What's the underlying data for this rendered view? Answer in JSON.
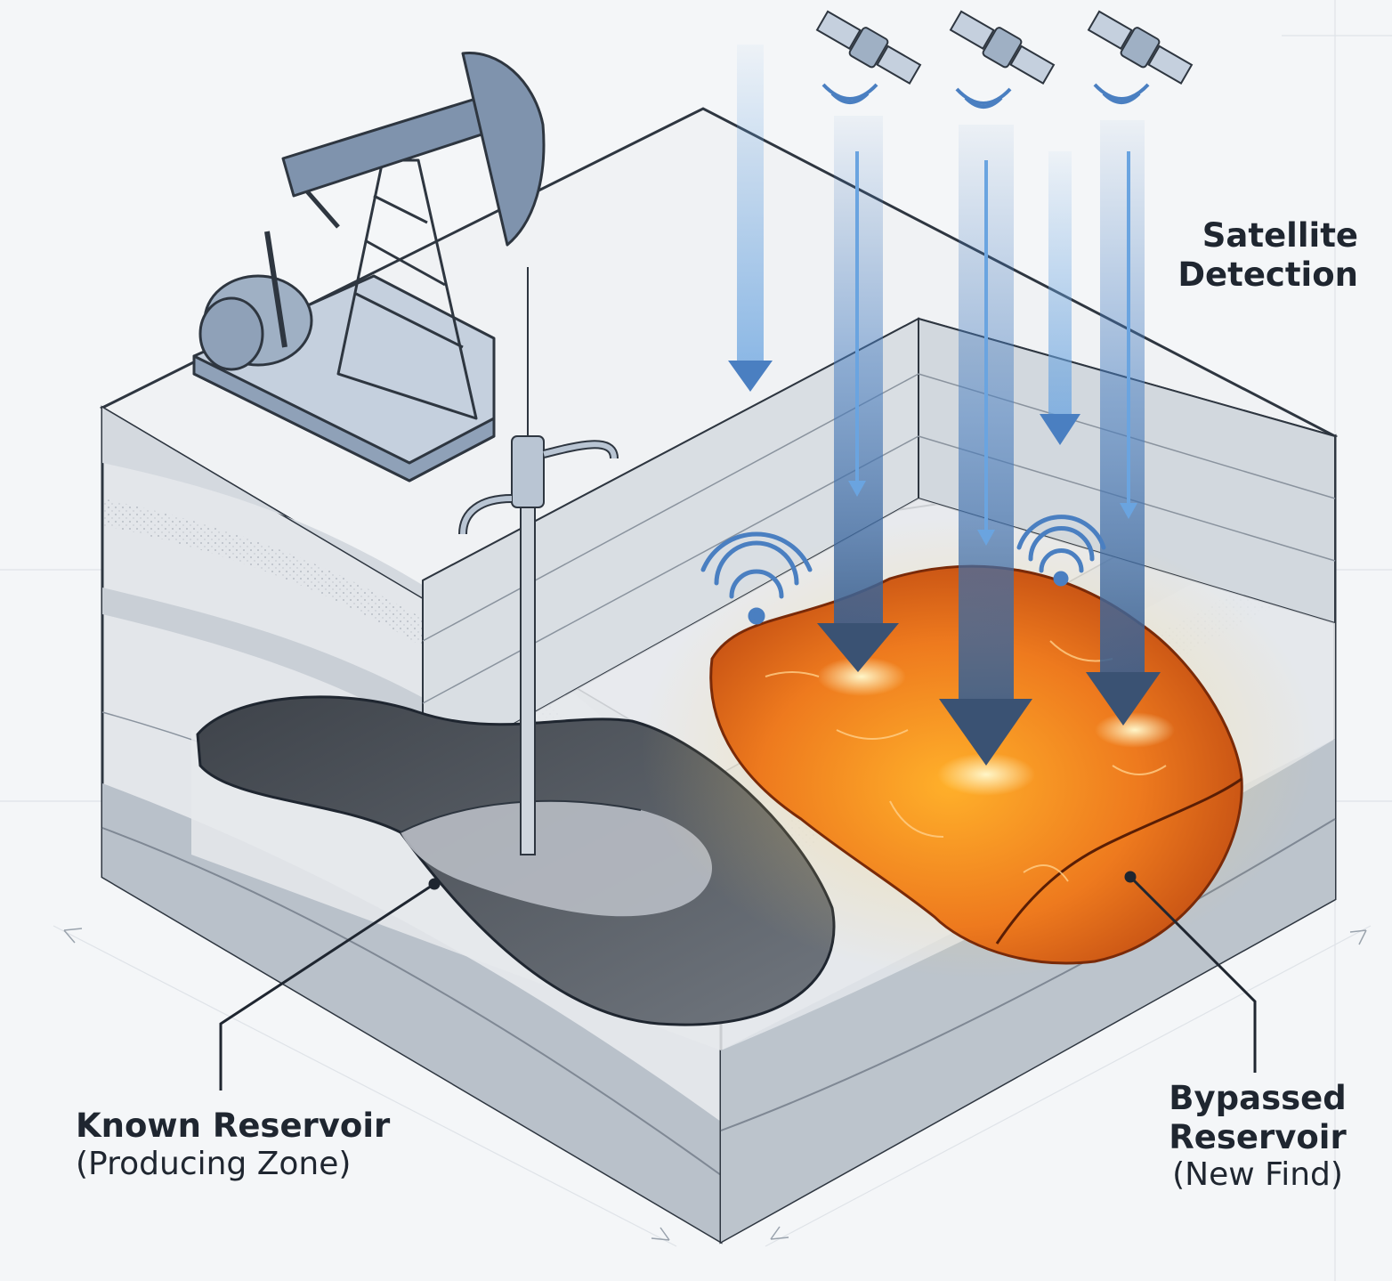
{
  "labels": {
    "satellite": {
      "line1": "Satellite",
      "line2": "Detection"
    },
    "known": {
      "title": "Known Reservoir",
      "subtitle": "(Producing Zone)"
    },
    "bypassed": {
      "line1": "Bypassed",
      "line2": "Reservoir",
      "subtitle": "(New Find)"
    }
  },
  "colors": {
    "background": "#f4f6f8",
    "strata_light": "#e3e6ea",
    "strata_mid": "#c9cfd6",
    "strata_dark": "#a7b0ba",
    "pumpjack": "#7f93ad",
    "beam": "#4a7fc1",
    "known_reservoir": "#5b6068",
    "bypassed_reservoir": "#e8671e",
    "glow": "#ffb347",
    "ink": "#1f2630"
  }
}
